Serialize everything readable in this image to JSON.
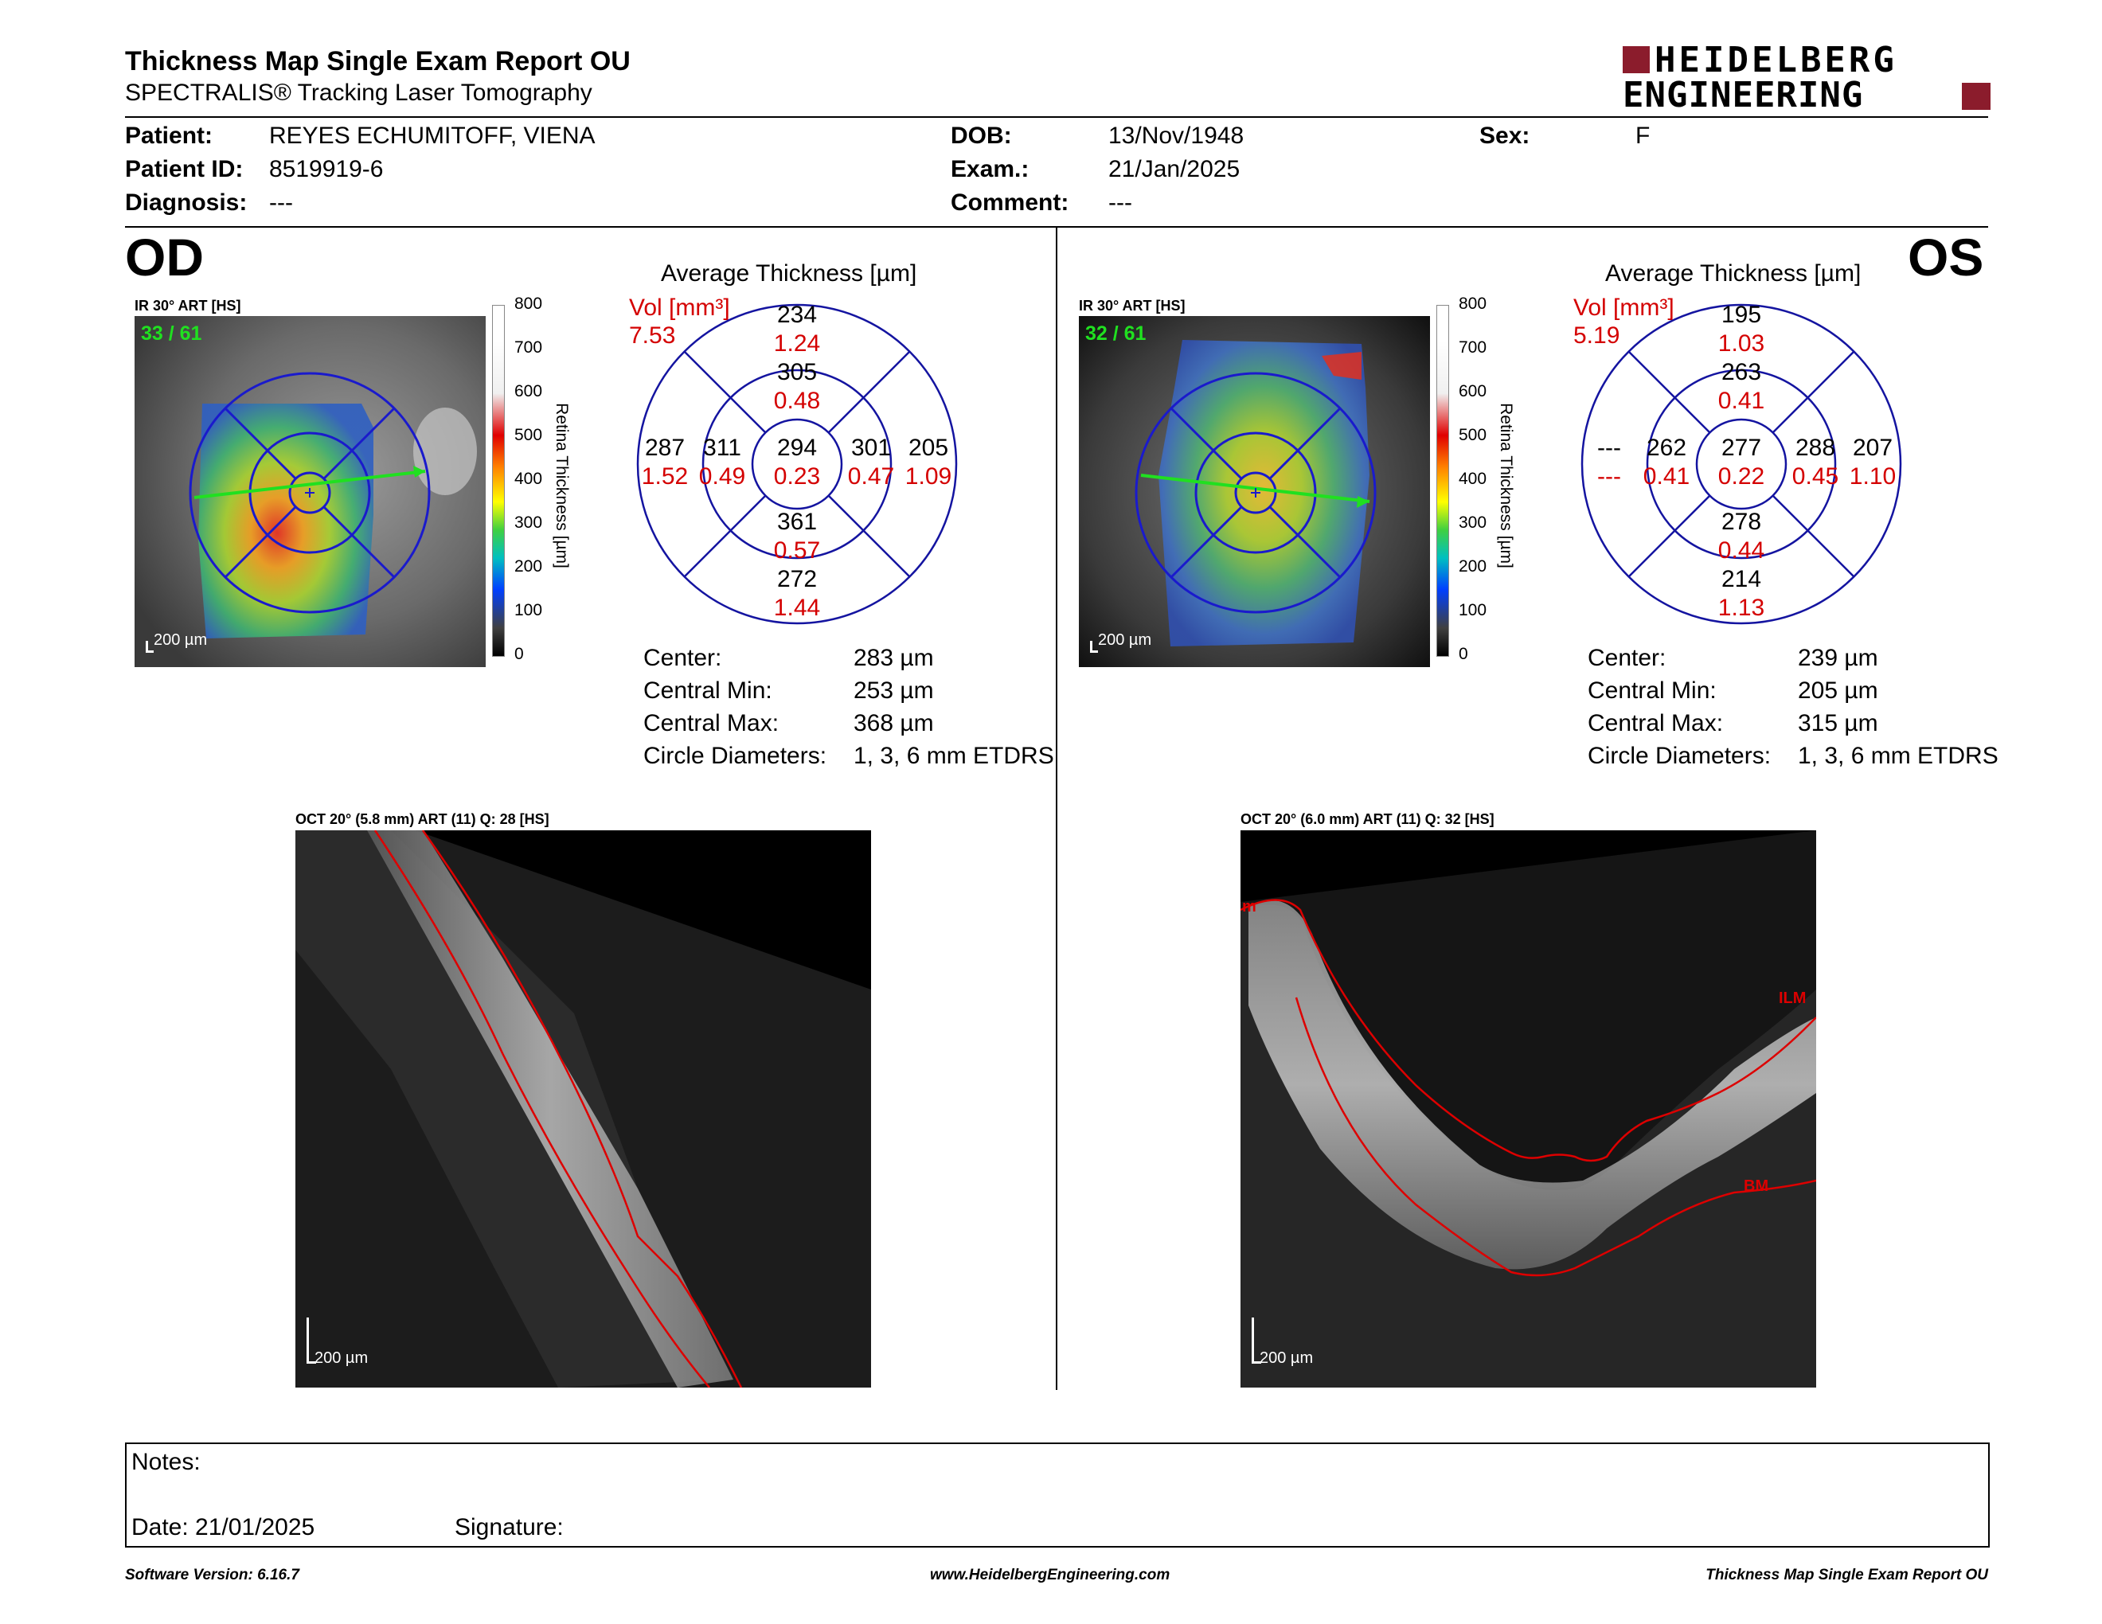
{
  "header": {
    "title": "Thickness Map Single Exam Report OU",
    "subtitle": "SPECTRALIS® Tracking Laser Tomography",
    "logo_line1": "HEIDELBERG",
    "logo_line2": "ENGINEERING"
  },
  "patient": {
    "patient_label": "Patient:",
    "patient_value": "REYES ECHUMITOFF, VIENA",
    "id_label": "Patient ID:",
    "id_value": "8519919-6",
    "diagnosis_label": "Diagnosis:",
    "diagnosis_value": "---",
    "dob_label": "DOB:",
    "dob_value": "13/Nov/1948",
    "exam_label": "Exam.:",
    "exam_value": "21/Jan/2025",
    "comment_label": "Comment:",
    "comment_value": "---",
    "sex_label": "Sex:",
    "sex_value": "F"
  },
  "scale": {
    "ticks": [
      "800",
      "700",
      "600",
      "500",
      "400",
      "300",
      "200",
      "100",
      "0"
    ],
    "axis_label": "Retina Thickness [µm]"
  },
  "od": {
    "eye": "OD",
    "ir_label": "IR 30° ART [HS]",
    "frames": "33 / 61",
    "ir_scale": "200 µm",
    "avg_title": "Average Thickness [µm]",
    "vol_label": "Vol [mm³]",
    "vol_value": "7.53",
    "grid": {
      "center": {
        "t": "294",
        "v": "0.23"
      },
      "sup_inner": {
        "t": "305",
        "v": "0.48"
      },
      "sup_outer": {
        "t": "234",
        "v": "1.24"
      },
      "inf_inner": {
        "t": "361",
        "v": "0.57"
      },
      "inf_outer": {
        "t": "272",
        "v": "1.44"
      },
      "left_inner": {
        "t": "311",
        "v": "0.49"
      },
      "left_outer": {
        "t": "287",
        "v": "1.52"
      },
      "right_inner": {
        "t": "301",
        "v": "0.47"
      },
      "right_outer": {
        "t": "205",
        "v": "1.09"
      }
    },
    "stats": {
      "center_label": "Center:",
      "center_value": "283 µm",
      "min_label": "Central Min:",
      "min_value": "253 µm",
      "max_label": "Central Max:",
      "max_value": "368 µm",
      "diam_label": "Circle Diameters:",
      "diam_value": "1, 3, 6 mm ETDRS"
    },
    "oct_label": "OCT 20° (5.8 mm) ART (11) Q: 28 [HS]",
    "oct_scale": "200 µm"
  },
  "os": {
    "eye": "OS",
    "ir_label": "IR 30° ART [HS]",
    "frames": "32 / 61",
    "ir_scale": "200 µm",
    "avg_title": "Average Thickness [µm]",
    "vol_label": "Vol [mm³]",
    "vol_value": "5.19",
    "grid": {
      "center": {
        "t": "277",
        "v": "0.22"
      },
      "sup_inner": {
        "t": "263",
        "v": "0.41"
      },
      "sup_outer": {
        "t": "195",
        "v": "1.03"
      },
      "inf_inner": {
        "t": "278",
        "v": "0.44"
      },
      "inf_outer": {
        "t": "214",
        "v": "1.13"
      },
      "left_inner": {
        "t": "262",
        "v": "0.41"
      },
      "left_outer": {
        "t": "---",
        "v": "---"
      },
      "right_inner": {
        "t": "288",
        "v": "0.45"
      },
      "right_outer": {
        "t": "207",
        "v": "1.10"
      }
    },
    "stats": {
      "center_label": "Center:",
      "center_value": "239 µm",
      "min_label": "Central Min:",
      "min_value": "205 µm",
      "max_label": "Central Max:",
      "max_value": "315 µm",
      "diam_label": "Circle Diameters:",
      "diam_value": "1, 3, 6 mm ETDRS"
    },
    "oct_label": "OCT 20° (6.0 mm) ART (11) Q: 32 [HS]",
    "oct_scale": "200 µm",
    "oct_ilm": "ILM",
    "oct_bm": "BM",
    "oct_m": "m"
  },
  "notes": {
    "notes_label": "Notes:",
    "date_label": "Date: 21/01/2025",
    "signature_label": "Signature:"
  },
  "footer": {
    "software": "Software Version: 6.16.7",
    "website": "www.HeidelbergEngineering.com",
    "report": "Thickness Map Single Exam Report OU"
  }
}
